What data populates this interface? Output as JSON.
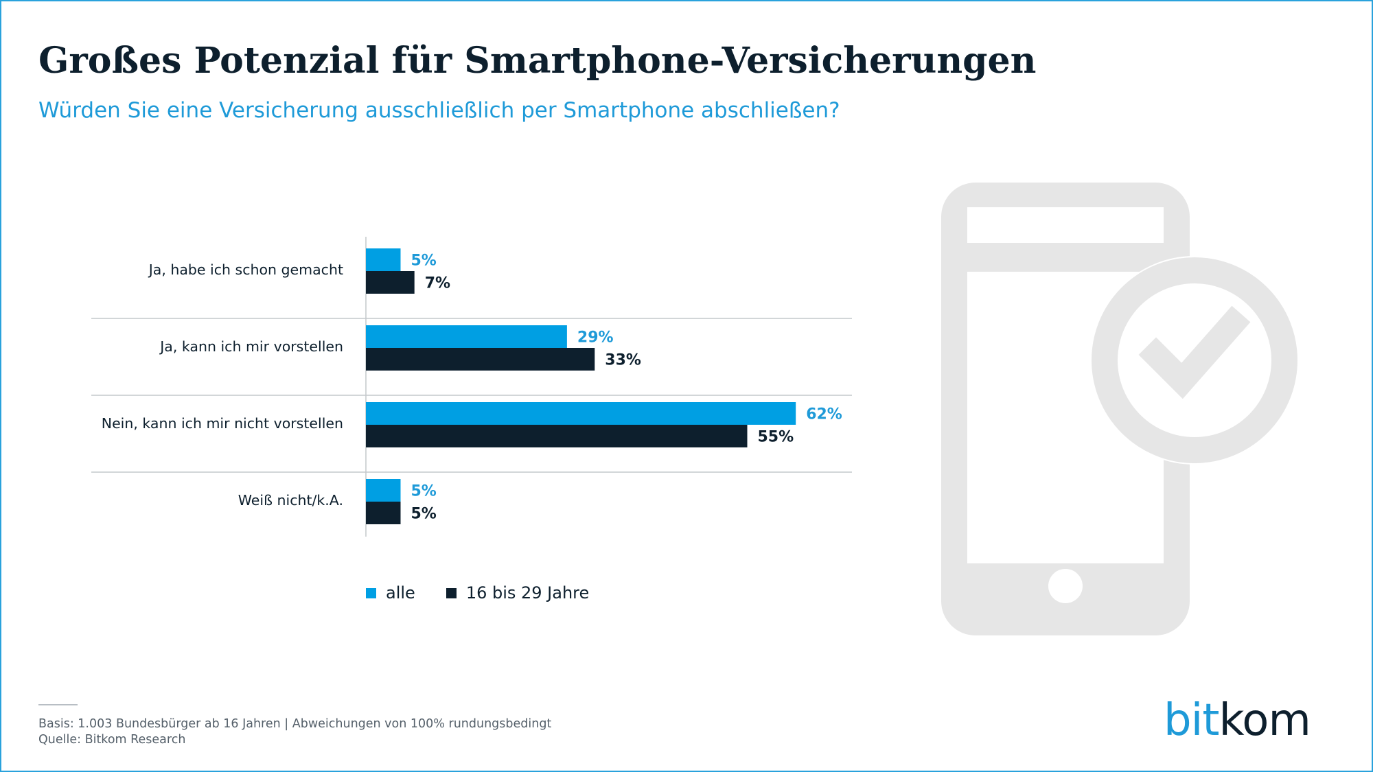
{
  "header": {
    "title": "Großes Potenzial für Smartphone-Versicherungen",
    "subtitle": "Würden Sie eine Versicherung ausschließlich per Smartphone abschließen?"
  },
  "colors": {
    "alle": "#009fe3",
    "young": "#0d1f2d",
    "divider": "#c4c8cc",
    "icon": "#e6e6e6"
  },
  "chart_data": {
    "type": "bar",
    "orientation": "horizontal",
    "categories": [
      "Ja, habe ich schon gemacht",
      "Ja, kann ich mir vorstellen",
      "Nein, kann ich mir nicht vorstellen",
      "Weiß nicht/k.A."
    ],
    "series": [
      {
        "name": "alle",
        "values": [
          5,
          29,
          62,
          5
        ],
        "labels": [
          "5%",
          "29%",
          "62%",
          "5%"
        ]
      },
      {
        "name": "16 bis 29 Jahre",
        "values": [
          7,
          33,
          55,
          5
        ],
        "labels": [
          "7%",
          "33%",
          "55%",
          "5%"
        ]
      }
    ],
    "xlim": [
      0,
      70
    ],
    "grid": false,
    "legend_position": "bottom"
  },
  "legend": {
    "item1": "alle",
    "item2": "16 bis 29 Jahre"
  },
  "icons": {
    "illustration": "smartphone-checkmark-icon"
  },
  "footer": {
    "basis": "Basis: 1.003 Bundesbürger ab 16 Jahren | Abweichungen von 100% rundungsbedingt",
    "source": "Quelle: Bitkom Research"
  },
  "logo": {
    "part1": "bit",
    "part2": "kom"
  }
}
